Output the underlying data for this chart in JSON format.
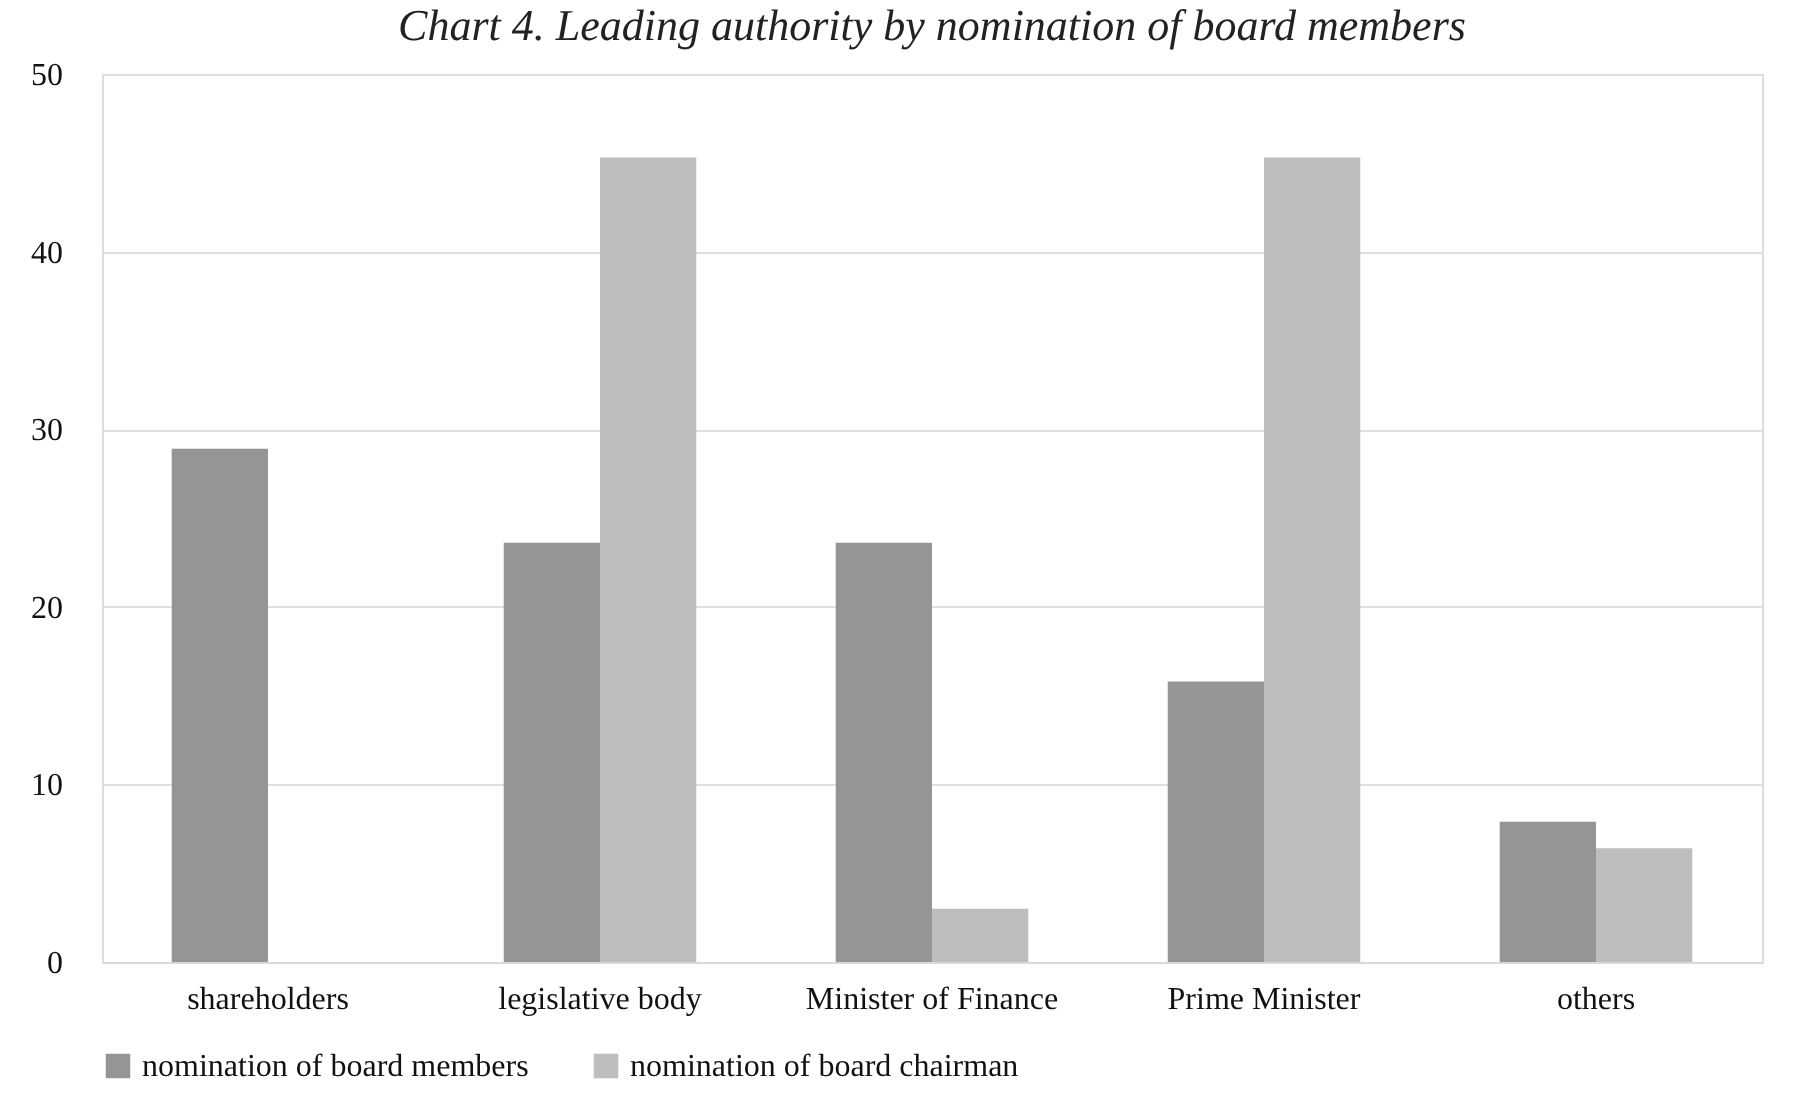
{
  "chart_data": {
    "type": "bar",
    "title": "Chart 4. Leading authority by nomination of board members",
    "categories": [
      "shareholders",
      "legislative body",
      "Minister of Finance",
      "Prime Minister",
      "others"
    ],
    "series": [
      {
        "name": "nomination of board members",
        "color": "#959595",
        "values": [
          28.9,
          23.6,
          23.6,
          15.8,
          7.9
        ]
      },
      {
        "name": "nomination of board chairman",
        "color": "#bdbdbd",
        "values": [
          0,
          45.3,
          3.0,
          45.3,
          6.4
        ]
      }
    ],
    "ylim": [
      0,
      50
    ],
    "yticks": [
      0,
      10,
      20,
      30,
      40,
      50
    ],
    "grid": "y",
    "legend": "bottom"
  }
}
